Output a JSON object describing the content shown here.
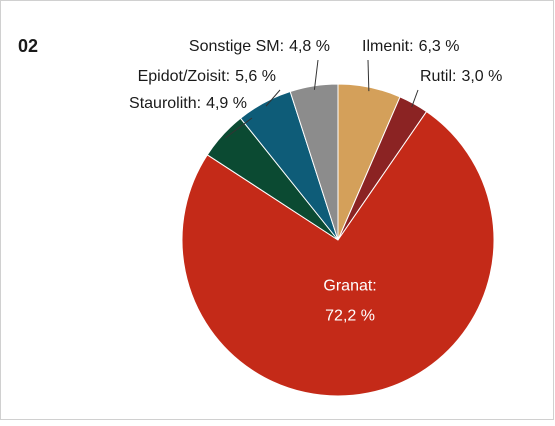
{
  "chart_data": {
    "type": "pie",
    "panel_label": "02",
    "categories": [
      "Ilmenit:",
      "Rutil:",
      "Granat:",
      "Staurolith:",
      "Epidot/Zoisit:",
      "Sonstige SM:"
    ],
    "values": [
      6.3,
      3.0,
      72.2,
      4.9,
      5.6,
      4.8
    ],
    "value_labels": [
      "6,3 %",
      "3,0 %",
      "72,2 %",
      "4,9 %",
      "5,6 %",
      "4,8 %"
    ],
    "colors": [
      "#d4a05a",
      "#8b2323",
      "#c42a18",
      "#0b4a32",
      "#0e5c78",
      "#8c8c8c"
    ]
  }
}
